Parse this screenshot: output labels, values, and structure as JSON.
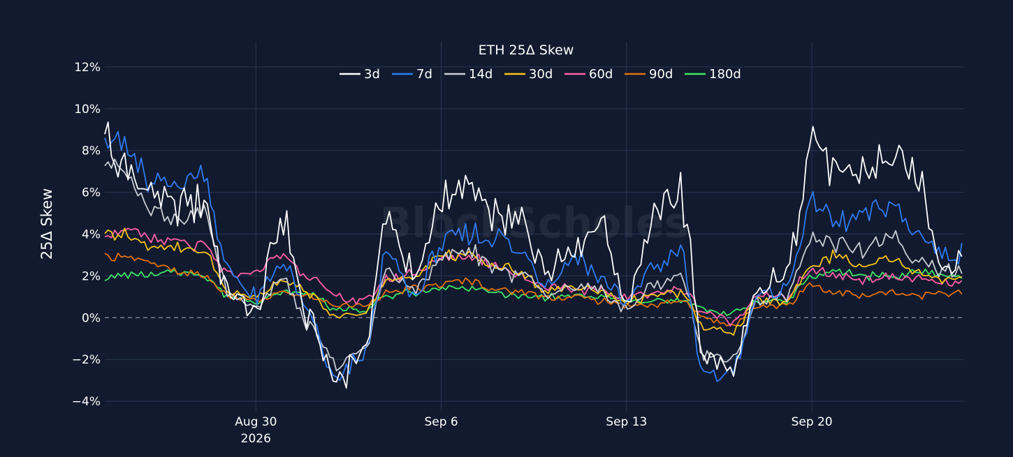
{
  "chart_data": {
    "type": "line",
    "title": "ETH 25Δ Skew",
    "ylabel": "25Δ Skew",
    "xlabel": "",
    "x_range": [
      "2026-08-24T07:00",
      "2026-09-25T18:00"
    ],
    "ylim": [
      -0.045,
      0.132
    ],
    "y_ticks": [
      -0.04,
      -0.02,
      0,
      0.02,
      0.04,
      0.06,
      0.08,
      0.1,
      0.12
    ],
    "y_tick_labels": [
      "−4%",
      "−2%",
      "0%",
      "2%",
      "4%",
      "6%",
      "8%",
      "10%",
      "12%"
    ],
    "x_ticks": [
      "2026-08-30",
      "2026-09-06",
      "2026-09-13",
      "2026-09-20"
    ],
    "x_tick_labels": [
      [
        "Aug 30",
        "2026"
      ],
      [
        "Sep 6"
      ],
      [
        "Sep 13"
      ],
      [
        "Sep 20"
      ]
    ],
    "grid": true,
    "zero_line": "dashed",
    "legend_position": "top-center",
    "watermark": "BlockScholes",
    "colors": {
      "background": "#111a2e",
      "grid": "#2a3656",
      "text": "#ffffff",
      "zero_line": "#8a93a8"
    },
    "dates": [
      "2026-08-24",
      "2026-08-25",
      "2026-08-26",
      "2026-08-27",
      "2026-08-28",
      "2026-08-29",
      "2026-08-30",
      "2026-08-31",
      "2026-09-01",
      "2026-09-02",
      "2026-09-03",
      "2026-09-04",
      "2026-09-05",
      "2026-09-06",
      "2026-09-07",
      "2026-09-08",
      "2026-09-09",
      "2026-09-10",
      "2026-09-11",
      "2026-09-12",
      "2026-09-13",
      "2026-09-14",
      "2026-09-15",
      "2026-09-16",
      "2026-09-17",
      "2026-09-18",
      "2026-09-19",
      "2026-09-20",
      "2026-09-21",
      "2026-09-22",
      "2026-09-23",
      "2026-09-24",
      "2026-09-25"
    ],
    "series": [
      {
        "name": "3d",
        "color": "#ffffff",
        "values": [
          0.095,
          0.072,
          0.058,
          0.052,
          0.055,
          0.012,
          0.005,
          0.045,
          -0.002,
          -0.03,
          -0.018,
          0.045,
          0.02,
          0.055,
          0.062,
          0.048,
          0.045,
          0.025,
          0.035,
          0.045,
          0.01,
          0.045,
          0.06,
          -0.02,
          -0.025,
          0.012,
          0.02,
          0.085,
          0.065,
          0.07,
          0.075,
          0.068,
          0.025
        ]
      },
      {
        "name": "7d",
        "color": "#2f7bf2",
        "values": [
          0.095,
          0.082,
          0.065,
          0.065,
          0.07,
          0.022,
          0.01,
          0.025,
          0.003,
          -0.032,
          -0.02,
          0.03,
          0.01,
          0.035,
          0.04,
          0.038,
          0.032,
          0.015,
          0.03,
          0.02,
          0.006,
          0.025,
          0.032,
          -0.03,
          -0.025,
          0.01,
          0.015,
          0.055,
          0.045,
          0.048,
          0.055,
          0.04,
          0.03
        ]
      },
      {
        "name": "14d",
        "color": "#c8ccd4",
        "values": [
          0.078,
          0.068,
          0.054,
          0.048,
          0.05,
          0.012,
          0.006,
          0.018,
          -0.004,
          -0.022,
          -0.016,
          0.022,
          0.012,
          0.03,
          0.032,
          0.025,
          0.02,
          0.01,
          0.014,
          0.012,
          0.004,
          0.016,
          0.02,
          -0.018,
          -0.02,
          0.008,
          0.01,
          0.038,
          0.035,
          0.032,
          0.04,
          0.028,
          0.022
        ]
      },
      {
        "name": "30d",
        "color": "#f5c518",
        "values": [
          0.042,
          0.04,
          0.035,
          0.033,
          0.032,
          0.012,
          0.01,
          0.018,
          0.012,
          0.0,
          0.002,
          0.018,
          0.02,
          0.03,
          0.03,
          0.025,
          0.022,
          0.012,
          0.015,
          0.012,
          0.008,
          0.01,
          0.012,
          -0.005,
          -0.006,
          0.008,
          0.008,
          0.025,
          0.03,
          0.024,
          0.028,
          0.022,
          0.018
        ]
      },
      {
        "name": "60d",
        "color": "#ff5fa8",
        "values": [
          0.04,
          0.042,
          0.038,
          0.036,
          0.034,
          0.02,
          0.022,
          0.03,
          0.02,
          0.01,
          0.008,
          0.018,
          0.022,
          0.028,
          0.03,
          0.026,
          0.02,
          0.015,
          0.014,
          0.012,
          0.01,
          0.012,
          0.014,
          0.002,
          -0.002,
          0.01,
          0.01,
          0.022,
          0.02,
          0.018,
          0.02,
          0.018,
          0.016
        ]
      },
      {
        "name": "90d",
        "color": "#e0700f",
        "values": [
          0.028,
          0.03,
          0.026,
          0.022,
          0.02,
          0.01,
          0.008,
          0.012,
          0.01,
          0.006,
          0.006,
          0.012,
          0.014,
          0.016,
          0.018,
          0.014,
          0.012,
          0.01,
          0.01,
          0.008,
          0.006,
          0.006,
          0.008,
          0.0,
          -0.004,
          0.006,
          0.006,
          0.016,
          0.012,
          0.01,
          0.012,
          0.01,
          0.012
        ]
      },
      {
        "name": "180d",
        "color": "#3ee664",
        "values": [
          0.018,
          0.02,
          0.02,
          0.022,
          0.02,
          0.01,
          0.008,
          0.012,
          0.012,
          0.004,
          0.004,
          0.01,
          0.012,
          0.014,
          0.014,
          0.012,
          0.01,
          0.01,
          0.01,
          0.01,
          0.008,
          0.008,
          0.008,
          0.004,
          0.002,
          0.008,
          0.008,
          0.02,
          0.022,
          0.02,
          0.02,
          0.022,
          0.02
        ]
      }
    ]
  }
}
